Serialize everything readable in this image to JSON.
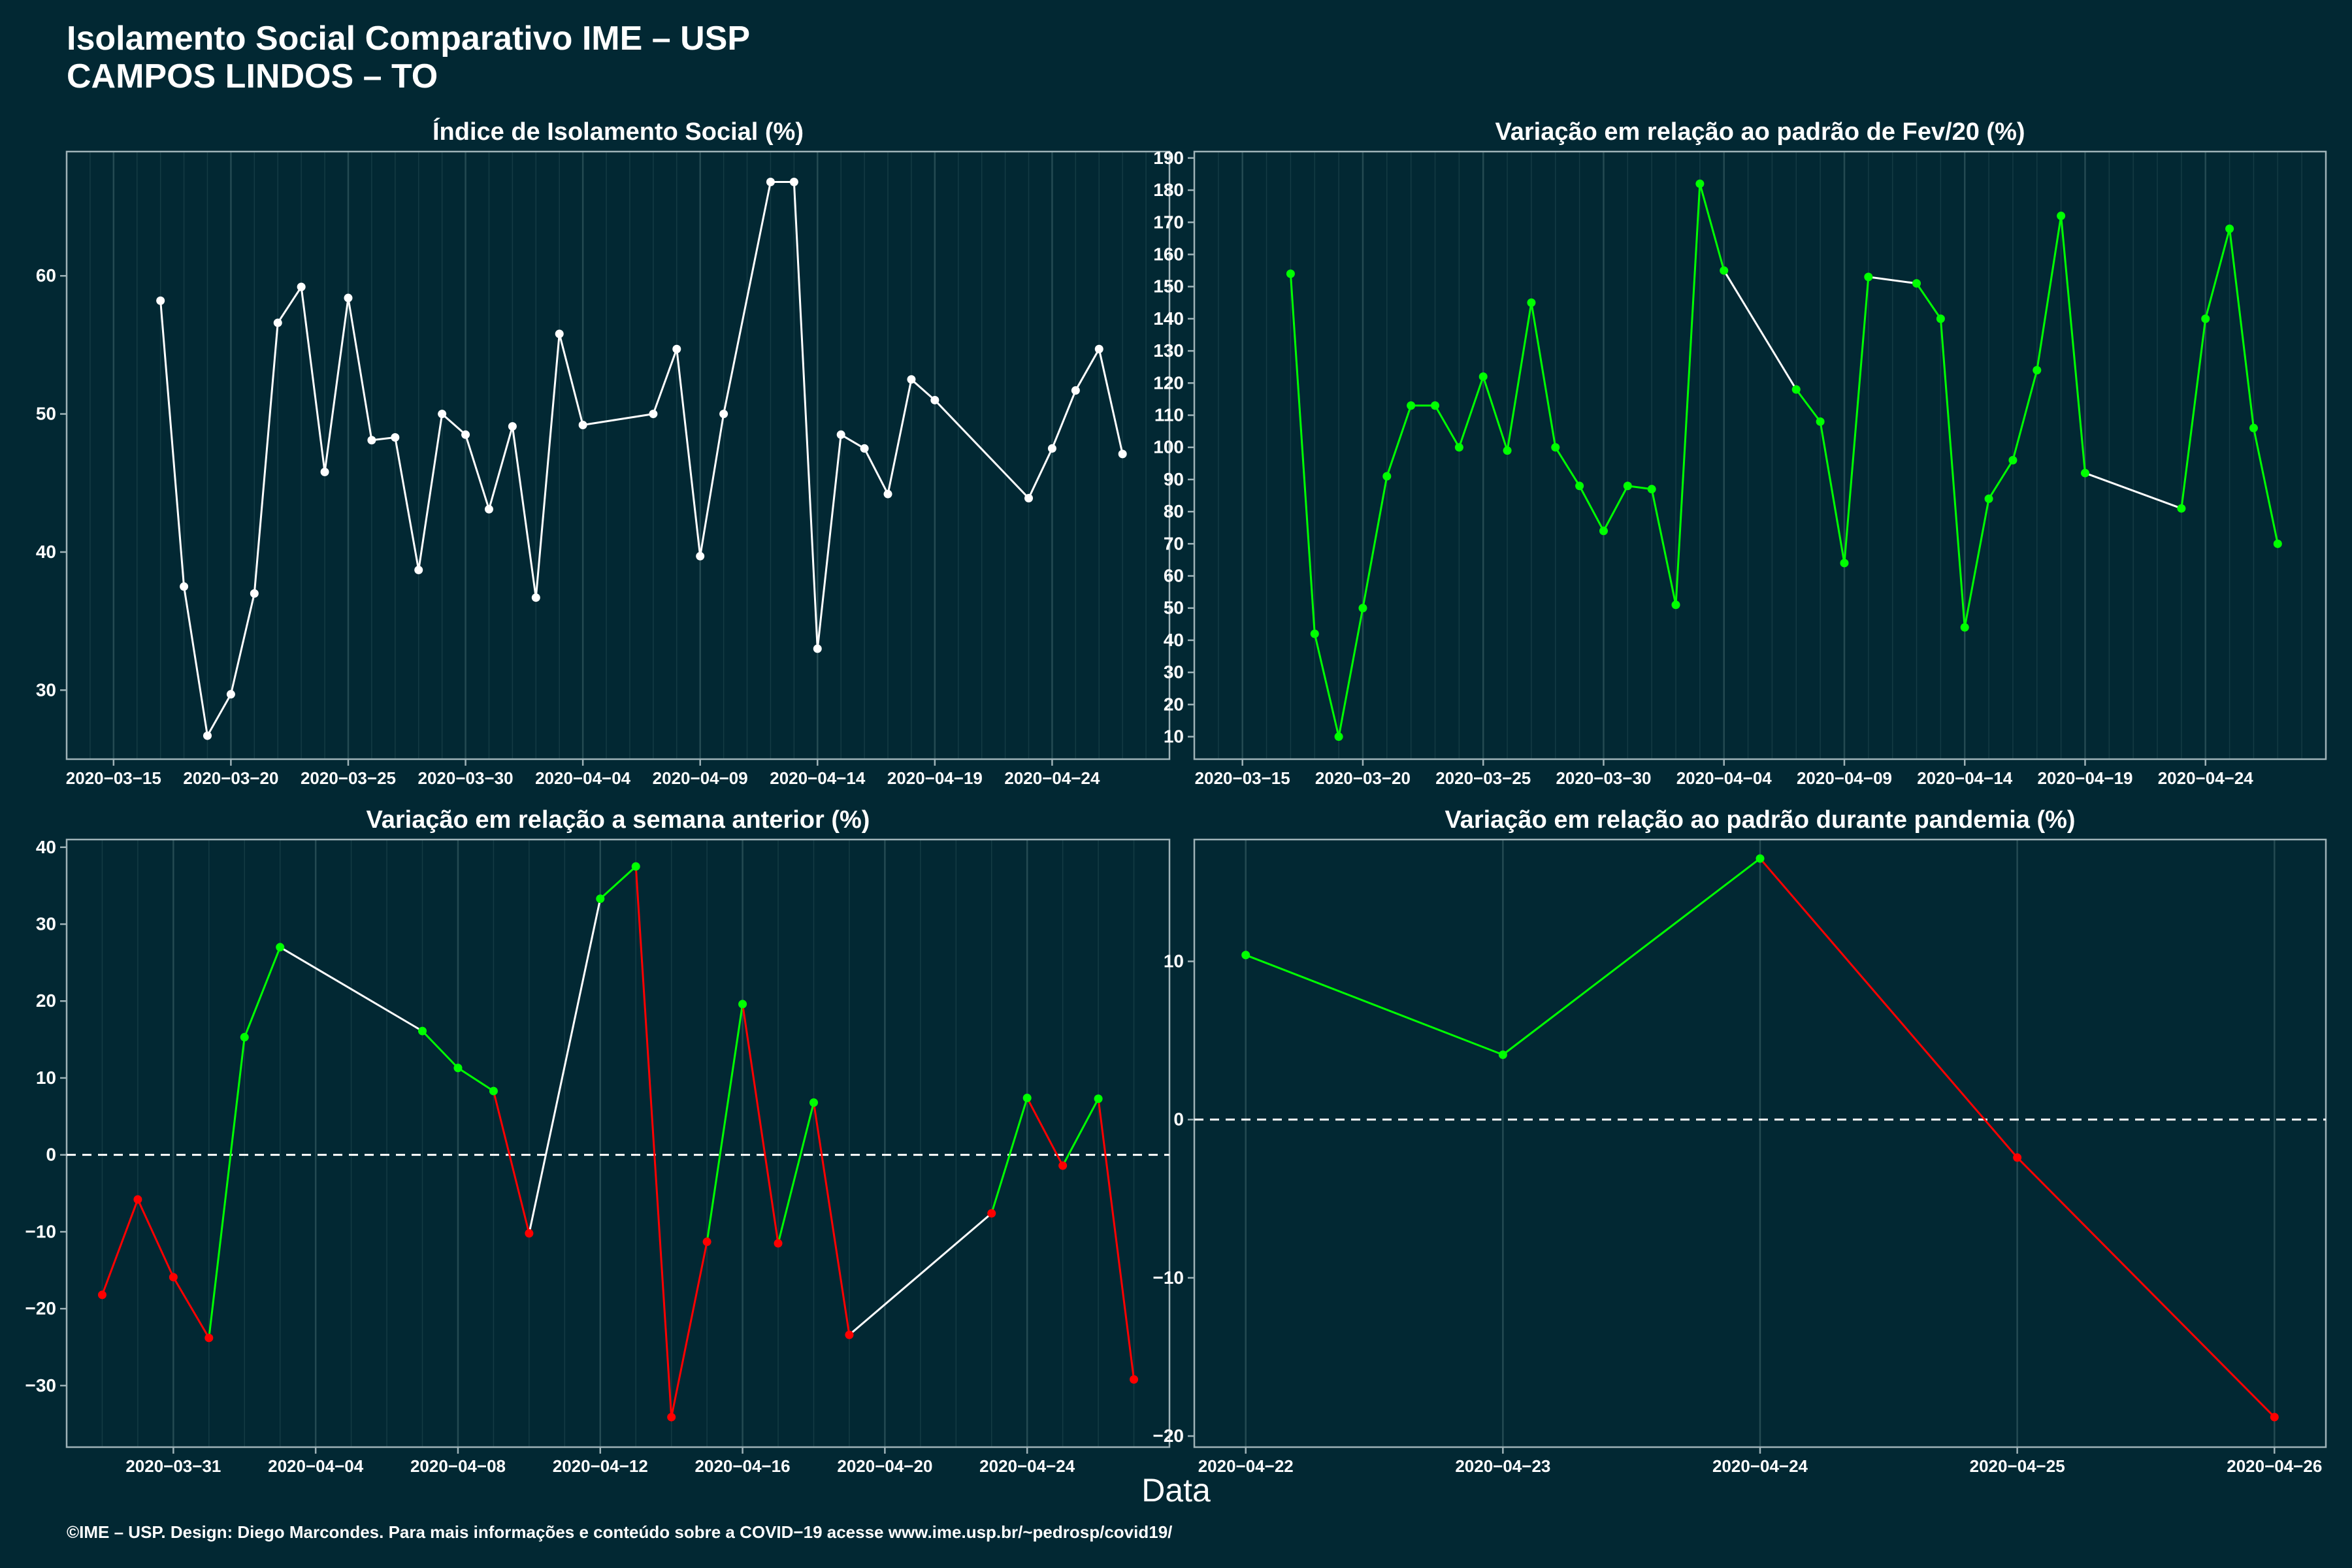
{
  "header": {
    "title": "Isolamento Social Comparativo IME – USP",
    "subtitle": "CAMPOS LINDOS – TO"
  },
  "x_axis_title": "Data",
  "footer": "©IME – USP. Design: Diego Marcondes. Para mais informações e conteúdo sobre a COVID−19 acesse www.ime.usp.br/~pedrosp/covid19/",
  "colors": {
    "background": "#022833",
    "grid": "#244a52",
    "axis": "#9fb3b8",
    "text": "#ffffff",
    "increase": "#00ff00",
    "decrease": "#ff0000",
    "neutral": "#ffffff"
  },
  "chart_data": [
    {
      "id": "isolation",
      "type": "line",
      "title": "Índice de Isolamento Social (%)",
      "xlim": [
        "2020-03-13",
        "2020-04-29"
      ],
      "ylim": [
        25,
        69
      ],
      "x_ticks": [
        "2020-03-15",
        "2020-03-20",
        "2020-03-25",
        "2020-03-30",
        "2020-04-04",
        "2020-04-09",
        "2020-04-14",
        "2020-04-19",
        "2020-04-24"
      ],
      "y_ticks": [
        30,
        40,
        50,
        60
      ],
      "grid": true,
      "color_mode": "single",
      "points": [
        [
          "2020-03-17",
          58.2
        ],
        [
          "2020-03-18",
          37.5
        ],
        [
          "2020-03-19",
          26.7
        ],
        [
          "2020-03-20",
          29.7
        ],
        [
          "2020-03-21",
          37.0
        ],
        [
          "2020-03-22",
          56.6
        ],
        [
          "2020-03-23",
          59.2
        ],
        [
          "2020-03-24",
          45.8
        ],
        [
          "2020-03-25",
          58.4
        ],
        [
          "2020-03-26",
          48.1
        ],
        [
          "2020-03-27",
          48.3
        ],
        [
          "2020-03-28",
          38.7
        ],
        [
          "2020-03-29",
          50.0
        ],
        [
          "2020-03-30",
          48.5
        ],
        [
          "2020-03-31",
          43.1
        ],
        [
          "2020-04-01",
          49.1
        ],
        [
          "2020-04-02",
          36.7
        ],
        [
          "2020-04-03",
          55.8
        ],
        [
          "2020-04-04",
          49.2
        ],
        [
          "2020-04-07",
          50.0
        ],
        [
          "2020-04-08",
          54.7
        ],
        [
          "2020-04-09",
          39.7
        ],
        [
          "2020-04-10",
          50.0
        ],
        [
          "2020-04-12",
          66.8
        ],
        [
          "2020-04-13",
          66.8
        ],
        [
          "2020-04-14",
          33.0
        ],
        [
          "2020-04-15",
          48.5
        ],
        [
          "2020-04-16",
          47.5
        ],
        [
          "2020-04-17",
          44.2
        ],
        [
          "2020-04-18",
          52.5
        ],
        [
          "2020-04-19",
          51.0
        ],
        [
          "2020-04-23",
          43.9
        ],
        [
          "2020-04-24",
          47.5
        ],
        [
          "2020-04-25",
          51.7
        ],
        [
          "2020-04-26",
          54.7
        ],
        [
          "2020-04-27",
          47.1
        ]
      ]
    },
    {
      "id": "variation-feb",
      "type": "line",
      "title": "Variação em relação ao padrão de Fev/20 (%)",
      "xlim": [
        "2020-03-13",
        "2020-04-29"
      ],
      "ylim": [
        3,
        192
      ],
      "x_ticks": [
        "2020-03-15",
        "2020-03-20",
        "2020-03-25",
        "2020-03-30",
        "2020-04-04",
        "2020-04-09",
        "2020-04-14",
        "2020-04-19",
        "2020-04-24"
      ],
      "y_ticks": [
        10,
        20,
        30,
        40,
        50,
        60,
        70,
        80,
        90,
        100,
        110,
        120,
        130,
        140,
        150,
        160,
        170,
        180,
        190
      ],
      "grid": true,
      "color_mode": "gap",
      "points": [
        [
          "2020-03-17",
          154
        ],
        [
          "2020-03-18",
          42
        ],
        [
          "2020-03-19",
          10
        ],
        [
          "2020-03-20",
          50
        ],
        [
          "2020-03-21",
          91
        ],
        [
          "2020-03-22",
          113
        ],
        [
          "2020-03-23",
          113
        ],
        [
          "2020-03-24",
          100
        ],
        [
          "2020-03-25",
          122
        ],
        [
          "2020-03-26",
          99
        ],
        [
          "2020-03-27",
          145
        ],
        [
          "2020-03-28",
          100
        ],
        [
          "2020-03-29",
          88
        ],
        [
          "2020-03-30",
          74
        ],
        [
          "2020-03-31",
          88
        ],
        [
          "2020-04-01",
          87
        ],
        [
          "2020-04-02",
          51
        ],
        [
          "2020-04-03",
          182
        ],
        [
          "2020-04-04",
          155
        ],
        [
          "2020-04-07",
          118
        ],
        [
          "2020-04-08",
          108
        ],
        [
          "2020-04-09",
          64
        ],
        [
          "2020-04-10",
          153
        ],
        [
          "2020-04-12",
          151
        ],
        [
          "2020-04-13",
          140
        ],
        [
          "2020-04-14",
          44
        ],
        [
          "2020-04-15",
          84
        ],
        [
          "2020-04-16",
          96
        ],
        [
          "2020-04-17",
          124
        ],
        [
          "2020-04-18",
          172
        ],
        [
          "2020-04-19",
          92
        ],
        [
          "2020-04-23",
          81
        ],
        [
          "2020-04-24",
          140
        ],
        [
          "2020-04-25",
          168
        ],
        [
          "2020-04-26",
          106
        ],
        [
          "2020-04-27",
          70
        ]
      ]
    },
    {
      "id": "variation-week",
      "type": "line",
      "title": "Variação em relação a semana anterior (%)",
      "xlim": [
        "2020-03-28",
        "2020-04-28"
      ],
      "ylim": [
        -38,
        41
      ],
      "x_ticks": [
        "2020-03-31",
        "2020-04-04",
        "2020-04-08",
        "2020-04-12",
        "2020-04-16",
        "2020-04-20",
        "2020-04-24"
      ],
      "y_ticks": [
        -30,
        -20,
        -10,
        0,
        10,
        20,
        30,
        40
      ],
      "grid": true,
      "zero_line": true,
      "color_mode": "sign",
      "points": [
        [
          "2020-03-29",
          -18.2
        ],
        [
          "2020-03-30",
          -5.8
        ],
        [
          "2020-03-31",
          -15.9
        ],
        [
          "2020-04-01",
          -23.8
        ],
        [
          "2020-04-02",
          15.3
        ],
        [
          "2020-04-03",
          27.0
        ],
        [
          "2020-04-07",
          16.1
        ],
        [
          "2020-04-08",
          11.3
        ],
        [
          "2020-04-09",
          8.3
        ],
        [
          "2020-04-10",
          -10.2
        ],
        [
          "2020-04-12",
          33.3
        ],
        [
          "2020-04-13",
          37.5
        ],
        [
          "2020-04-14",
          -34.1
        ],
        [
          "2020-04-15",
          -11.3
        ],
        [
          "2020-04-16",
          19.6
        ],
        [
          "2020-04-17",
          -11.5
        ],
        [
          "2020-04-18",
          6.8
        ],
        [
          "2020-04-19",
          -23.4
        ],
        [
          "2020-04-23",
          -7.6
        ],
        [
          "2020-04-24",
          7.4
        ],
        [
          "2020-04-25",
          -1.4
        ],
        [
          "2020-04-26",
          7.3
        ],
        [
          "2020-04-27",
          -29.2
        ]
      ]
    },
    {
      "id": "variation-pandemic",
      "type": "line",
      "title": "Variação em relação ao padrão durante pandemia (%)",
      "xlim": [
        "2020-04-21.8",
        "2020-04-26.2"
      ],
      "ylim": [
        -20.7,
        17.7
      ],
      "x_ticks": [
        "2020-04-22",
        "2020-04-23",
        "2020-04-24",
        "2020-04-25",
        "2020-04-26"
      ],
      "y_ticks": [
        -20,
        -10,
        0,
        10
      ],
      "grid": true,
      "zero_line": true,
      "color_mode": "sign",
      "points": [
        [
          "2020-04-22",
          10.4
        ],
        [
          "2020-04-23",
          4.1
        ],
        [
          "2020-04-24",
          16.5
        ],
        [
          "2020-04-25",
          -2.4
        ],
        [
          "2020-04-26",
          -18.8
        ]
      ]
    }
  ]
}
